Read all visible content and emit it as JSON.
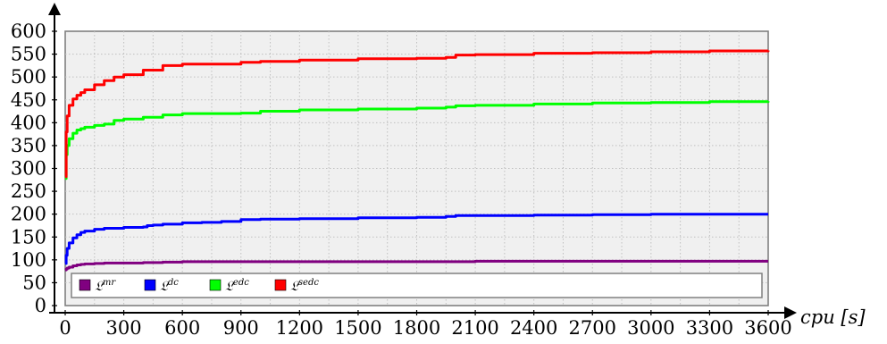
{
  "chart_data": {
    "type": "line",
    "xlabel": "cpu [s]",
    "ylabel": "",
    "xlim": [
      0,
      3600
    ],
    "ylim": [
      0,
      600
    ],
    "xticks": [
      0,
      300,
      600,
      900,
      1200,
      1500,
      1800,
      2100,
      2400,
      2700,
      3000,
      3300,
      3600
    ],
    "yticks": [
      0,
      50,
      100,
      150,
      200,
      250,
      300,
      350,
      400,
      450,
      500,
      550,
      600
    ],
    "grid": true,
    "legend_position": "bottom",
    "series": [
      {
        "name": "𝔏mr",
        "label_base": "𝔏",
        "label_sup": "mr",
        "color": "#800080",
        "x": [
          0,
          5,
          10,
          20,
          40,
          60,
          80,
          100,
          150,
          200,
          300,
          400,
          500,
          600,
          900,
          1200,
          1500,
          1800,
          2100,
          2400,
          2700,
          3000,
          3300,
          3600
        ],
        "y": [
          78,
          80,
          82,
          84,
          87,
          89,
          90,
          91,
          92,
          93,
          93,
          94,
          95,
          96,
          96,
          96,
          96,
          96,
          97,
          97,
          97,
          97,
          97,
          97
        ]
      },
      {
        "name": "𝔏dc",
        "label_base": "𝔏",
        "label_sup": "dc",
        "color": "#0000ff",
        "x": [
          0,
          5,
          10,
          20,
          40,
          60,
          80,
          100,
          150,
          200,
          300,
          400,
          420,
          450,
          500,
          600,
          700,
          800,
          900,
          1000,
          1200,
          1500,
          1800,
          1950,
          2000,
          2100,
          2400,
          2700,
          3000,
          3300,
          3600
        ],
        "y": [
          92,
          110,
          125,
          137,
          148,
          155,
          160,
          163,
          167,
          169,
          171,
          172,
          175,
          176,
          178,
          181,
          182,
          184,
          188,
          189,
          190,
          192,
          193,
          195,
          197,
          197,
          198,
          199,
          200,
          200,
          200
        ]
      },
      {
        "name": "𝔏edc",
        "label_base": "𝔏",
        "label_sup": "edc",
        "color": "#00ff00",
        "x": [
          0,
          5,
          10,
          20,
          40,
          60,
          80,
          100,
          150,
          200,
          250,
          300,
          400,
          500,
          600,
          900,
          1000,
          1200,
          1500,
          1800,
          1950,
          2000,
          2100,
          2400,
          2700,
          3000,
          3300,
          3600
        ],
        "y": [
          278,
          330,
          350,
          365,
          377,
          384,
          387,
          390,
          394,
          397,
          405,
          408,
          412,
          417,
          420,
          421,
          425,
          428,
          430,
          432,
          434,
          437,
          438,
          441,
          443,
          444,
          446,
          447
        ]
      },
      {
        "name": "𝔏sedc",
        "label_base": "𝔏",
        "label_sup": "sedc",
        "color": "#ff0000",
        "x": [
          0,
          5,
          10,
          20,
          40,
          60,
          80,
          100,
          150,
          200,
          250,
          300,
          400,
          500,
          600,
          900,
          1000,
          1200,
          1500,
          1800,
          1950,
          2000,
          2100,
          2400,
          2700,
          3000,
          3300,
          3600
        ],
        "y": [
          282,
          380,
          415,
          438,
          452,
          460,
          466,
          472,
          483,
          492,
          500,
          505,
          515,
          525,
          528,
          532,
          534,
          537,
          540,
          541,
          543,
          548,
          549,
          552,
          553,
          555,
          557,
          558
        ]
      }
    ]
  }
}
